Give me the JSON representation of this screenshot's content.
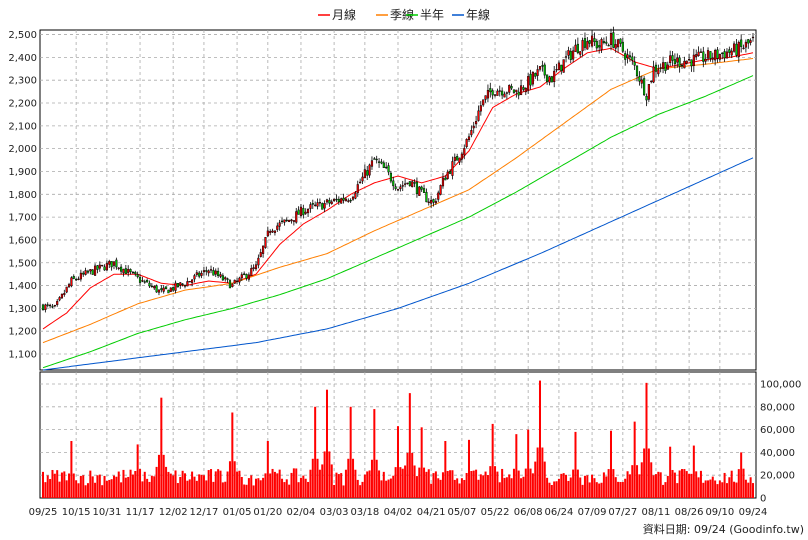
{
  "legend": [
    {
      "name": "月線",
      "color": "#ff0000"
    },
    {
      "name": "季線",
      "color": "#ff7f00"
    },
    {
      "name": "半年",
      "color": "#00cc00"
    },
    {
      "name": "年線",
      "color": "#0055cc"
    }
  ],
  "source_text": "資料日期: 09/24  (Goodinfo.tw)",
  "chart_data": [
    {
      "type": "candlestick",
      "ylim": [
        1030,
        2520
      ],
      "y_ticks": [
        1100,
        1200,
        1300,
        1400,
        1500,
        1600,
        1700,
        1800,
        1900,
        2000,
        2100,
        2200,
        2300,
        2400,
        2500
      ],
      "y_tick_labels": [
        "1,100",
        "1,200",
        "1,300",
        "1,400",
        "1,500",
        "1,600",
        "1,700",
        "1,800",
        "1,900",
        "2,000",
        "2,100",
        "2,200",
        "2,300",
        "2,400",
        "2,500"
      ],
      "x_tick_labels": [
        "09/25",
        "10/15",
        "10/31",
        "11/17",
        "12/02",
        "12/17",
        "01/05",
        "01/20",
        "02/04",
        "03/03",
        "03/18",
        "04/02",
        "04/21",
        "05/07",
        "05/22",
        "06/08",
        "06/24",
        "07/09",
        "07/27",
        "08/11",
        "08/26",
        "09/10",
        "09/24"
      ],
      "grid": true,
      "close_anchors": [
        [
          0,
          1310
        ],
        [
          5,
          1300
        ],
        [
          12,
          1420
        ],
        [
          20,
          1460
        ],
        [
          30,
          1500
        ],
        [
          40,
          1430
        ],
        [
          50,
          1370
        ],
        [
          60,
          1410
        ],
        [
          70,
          1470
        ],
        [
          80,
          1400
        ],
        [
          90,
          1480
        ],
        [
          96,
          1650
        ],
        [
          103,
          1680
        ],
        [
          110,
          1730
        ],
        [
          120,
          1760
        ],
        [
          130,
          1790
        ],
        [
          140,
          1950
        ],
        [
          145,
          1900
        ],
        [
          150,
          1830
        ],
        [
          155,
          1860
        ],
        [
          160,
          1800
        ],
        [
          165,
          1760
        ],
        [
          170,
          1880
        ],
        [
          175,
          1960
        ],
        [
          180,
          2050
        ],
        [
          185,
          2190
        ],
        [
          190,
          2260
        ],
        [
          195,
          2260
        ],
        [
          200,
          2250
        ],
        [
          205,
          2290
        ],
        [
          210,
          2340
        ],
        [
          215,
          2310
        ],
        [
          220,
          2380
        ],
        [
          225,
          2440
        ],
        [
          230,
          2480
        ],
        [
          235,
          2450
        ],
        [
          240,
          2480
        ],
        [
          245,
          2430
        ],
        [
          250,
          2360
        ],
        [
          255,
          2240
        ],
        [
          258,
          2350
        ],
        [
          265,
          2380
        ],
        [
          275,
          2390
        ],
        [
          285,
          2410
        ],
        [
          295,
          2440
        ],
        [
          300,
          2470
        ]
      ],
      "ma_series": [
        {
          "name": "月線",
          "points": [
            [
              0,
              1210
            ],
            [
              10,
              1280
            ],
            [
              20,
              1390
            ],
            [
              30,
              1450
            ],
            [
              40,
              1450
            ],
            [
              50,
              1410
            ],
            [
              60,
              1400
            ],
            [
              70,
              1420
            ],
            [
              80,
              1410
            ],
            [
              90,
              1450
            ],
            [
              100,
              1580
            ],
            [
              110,
              1670
            ],
            [
              120,
              1730
            ],
            [
              130,
              1800
            ],
            [
              140,
              1850
            ],
            [
              150,
              1880
            ],
            [
              160,
              1850
            ],
            [
              170,
              1880
            ],
            [
              180,
              1990
            ],
            [
              190,
              2180
            ],
            [
              200,
              2240
            ],
            [
              210,
              2270
            ],
            [
              220,
              2350
            ],
            [
              230,
              2420
            ],
            [
              240,
              2440
            ],
            [
              250,
              2380
            ],
            [
              260,
              2350
            ],
            [
              270,
              2370
            ],
            [
              280,
              2390
            ],
            [
              290,
              2400
            ],
            [
              300,
              2420
            ]
          ]
        },
        {
          "name": "季線",
          "points": [
            [
              0,
              1150
            ],
            [
              20,
              1230
            ],
            [
              40,
              1320
            ],
            [
              60,
              1380
            ],
            [
              80,
              1410
            ],
            [
              100,
              1480
            ],
            [
              120,
              1540
            ],
            [
              140,
              1640
            ],
            [
              160,
              1730
            ],
            [
              180,
              1820
            ],
            [
              200,
              1960
            ],
            [
              220,
              2110
            ],
            [
              240,
              2260
            ],
            [
              260,
              2350
            ],
            [
              280,
              2370
            ],
            [
              300,
              2395
            ]
          ]
        },
        {
          "name": "半年",
          "points": [
            [
              0,
              1040
            ],
            [
              20,
              1110
            ],
            [
              40,
              1190
            ],
            [
              60,
              1250
            ],
            [
              80,
              1300
            ],
            [
              100,
              1360
            ],
            [
              120,
              1430
            ],
            [
              140,
              1520
            ],
            [
              160,
              1610
            ],
            [
              180,
              1700
            ],
            [
              200,
              1810
            ],
            [
              220,
              1930
            ],
            [
              240,
              2050
            ],
            [
              260,
              2150
            ],
            [
              280,
              2230
            ],
            [
              300,
              2320
            ]
          ]
        },
        {
          "name": "年線",
          "points": [
            [
              0,
              1030
            ],
            [
              30,
              1070
            ],
            [
              60,
              1110
            ],
            [
              90,
              1150
            ],
            [
              120,
              1210
            ],
            [
              150,
              1300
            ],
            [
              180,
              1410
            ],
            [
              210,
              1540
            ],
            [
              240,
              1680
            ],
            [
              270,
              1820
            ],
            [
              300,
              1960
            ]
          ]
        }
      ]
    },
    {
      "type": "bar",
      "ylim": [
        0,
        100000
      ],
      "y_ticks": [
        0,
        20000,
        40000,
        60000,
        80000,
        100000
      ],
      "y_tick_labels": [
        "0",
        "20,000",
        "40,000",
        "60,000",
        "80,000",
        "100,000"
      ],
      "bar_color": "#ff0000",
      "base_volume": 20000,
      "volume_spikes": [
        [
          12,
          50000
        ],
        [
          40,
          47000
        ],
        [
          50,
          88000
        ],
        [
          80,
          75000
        ],
        [
          95,
          50000
        ],
        [
          115,
          80000
        ],
        [
          120,
          95000
        ],
        [
          130,
          80000
        ],
        [
          140,
          78000
        ],
        [
          150,
          63000
        ],
        [
          155,
          92000
        ],
        [
          160,
          62000
        ],
        [
          170,
          50000
        ],
        [
          180,
          51000
        ],
        [
          190,
          65000
        ],
        [
          200,
          56000
        ],
        [
          205,
          60000
        ],
        [
          210,
          103000
        ],
        [
          225,
          58000
        ],
        [
          240,
          59000
        ],
        [
          250,
          67000
        ],
        [
          255,
          101000
        ],
        [
          265,
          45000
        ],
        [
          275,
          46000
        ],
        [
          295,
          40000
        ]
      ]
    }
  ]
}
